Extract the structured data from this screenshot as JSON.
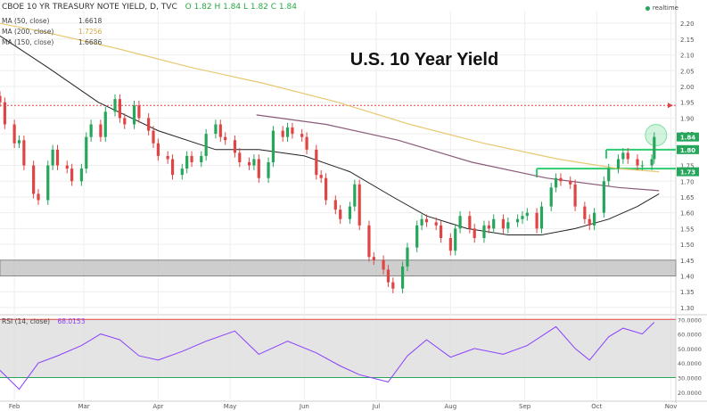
{
  "header": {
    "symbol_title": "CBOE 10 YR TREASURY NOTE YIELD, D, TVC",
    "ohlc": "O 1.82  H 1.84  L 1.82  C 1.84",
    "realtime_label": "realtime"
  },
  "indicators": [
    {
      "label": "MA (50, close)",
      "value": "1.6618"
    },
    {
      "label": "MA (200, close)",
      "value": "1.7256"
    },
    {
      "label": "MA (150, close)",
      "value": "1.6686"
    }
  ],
  "rsi_label": {
    "label": "RSI (14, close)",
    "value": "68.0153"
  },
  "colors": {
    "up": "#26a65b",
    "down": "#e04545",
    "ma50": "#222222",
    "ma200": "#e8c870",
    "ma150": "#8a5a7a",
    "rsi": "#8a3ffc",
    "band": "#bdbdbd",
    "green_line": "#2ecc71",
    "red_dash": "#e04545",
    "grid": "#eeeeee"
  },
  "chart_data": {
    "type": "candlestick",
    "title": "U.S. 10 Year Yield",
    "x_ticks": [
      "Feb",
      "Mar",
      "Apr",
      "May",
      "Jun",
      "Jul",
      "Aug",
      "Sep",
      "Oct",
      "Nov"
    ],
    "y_ticks": [
      "1.30",
      "1.35",
      "1.40",
      "1.45",
      "1.50",
      "1.55",
      "1.60",
      "1.65",
      "1.70",
      "1.75",
      "1.80",
      "1.85",
      "1.90",
      "1.95",
      "2.00",
      "2.05",
      "2.10",
      "2.15",
      "2.20"
    ],
    "ylim": [
      1.28,
      2.24
    ],
    "price_badges": [
      {
        "value": 1.84,
        "label": "1.84",
        "color": "#26a65b"
      },
      {
        "value": 1.8,
        "label": "1.80",
        "color": "#26a65b"
      },
      {
        "value": 1.73,
        "label": "1.73",
        "color": "#26a65b"
      }
    ],
    "support_band": [
      1.4,
      1.45
    ],
    "resistance_dashed": 1.94,
    "green_levels": [
      {
        "value": 1.8,
        "from": "2016-10-05",
        "to": "2016-10-31"
      },
      {
        "value": 1.74,
        "from": "2016-09-06",
        "to": "2016-10-31"
      }
    ],
    "highlight_circle": {
      "date": "2016-10-25",
      "value": 1.84
    },
    "closes": [
      [
        "2016-01-26",
        1.95
      ],
      [
        "2016-01-28",
        1.88
      ],
      [
        "2016-02-01",
        1.82
      ],
      [
        "2016-02-03",
        1.83
      ],
      [
        "2016-02-05",
        1.75
      ],
      [
        "2016-02-09",
        1.66
      ],
      [
        "2016-02-11",
        1.64
      ],
      [
        "2016-02-15",
        1.75
      ],
      [
        "2016-02-17",
        1.8
      ],
      [
        "2016-02-19",
        1.75
      ],
      [
        "2016-02-23",
        1.74
      ],
      [
        "2016-02-25",
        1.7
      ],
      [
        "2016-02-29",
        1.74
      ],
      [
        "2016-03-02",
        1.84
      ],
      [
        "2016-03-04",
        1.88
      ],
      [
        "2016-03-08",
        1.84
      ],
      [
        "2016-03-10",
        1.92
      ],
      [
        "2016-03-14",
        1.96
      ],
      [
        "2016-03-16",
        1.9
      ],
      [
        "2016-03-18",
        1.88
      ],
      [
        "2016-03-22",
        1.94
      ],
      [
        "2016-03-24",
        1.9
      ],
      [
        "2016-03-28",
        1.86
      ],
      [
        "2016-03-30",
        1.82
      ],
      [
        "2016-04-01",
        1.78
      ],
      [
        "2016-04-05",
        1.77
      ],
      [
        "2016-04-07",
        1.72
      ],
      [
        "2016-04-11",
        1.74
      ],
      [
        "2016-04-13",
        1.78
      ],
      [
        "2016-04-15",
        1.76
      ],
      [
        "2016-04-19",
        1.78
      ],
      [
        "2016-04-21",
        1.85
      ],
      [
        "2016-04-25",
        1.88
      ],
      [
        "2016-04-27",
        1.84
      ],
      [
        "2016-04-29",
        1.83
      ],
      [
        "2016-05-03",
        1.79
      ],
      [
        "2016-05-05",
        1.76
      ],
      [
        "2016-05-09",
        1.75
      ],
      [
        "2016-05-11",
        1.77
      ],
      [
        "2016-05-13",
        1.71
      ],
      [
        "2016-05-17",
        1.76
      ],
      [
        "2016-05-19",
        1.86
      ],
      [
        "2016-05-23",
        1.84
      ],
      [
        "2016-05-25",
        1.87
      ],
      [
        "2016-05-27",
        1.85
      ],
      [
        "2016-05-31",
        1.84
      ],
      [
        "2016-06-02",
        1.8
      ],
      [
        "2016-06-06",
        1.72
      ],
      [
        "2016-06-08",
        1.71
      ],
      [
        "2016-06-10",
        1.64
      ],
      [
        "2016-06-14",
        1.61
      ],
      [
        "2016-06-16",
        1.58
      ],
      [
        "2016-06-20",
        1.62
      ],
      [
        "2016-06-22",
        1.69
      ],
      [
        "2016-06-24",
        1.56
      ],
      [
        "2016-06-28",
        1.46
      ],
      [
        "2016-06-30",
        1.45
      ],
      [
        "2016-07-04",
        1.42
      ],
      [
        "2016-07-06",
        1.38
      ],
      [
        "2016-07-08",
        1.36
      ],
      [
        "2016-07-12",
        1.43
      ],
      [
        "2016-07-14",
        1.49
      ],
      [
        "2016-07-18",
        1.56
      ],
      [
        "2016-07-20",
        1.58
      ],
      [
        "2016-07-22",
        1.57
      ],
      [
        "2016-07-26",
        1.56
      ],
      [
        "2016-07-28",
        1.52
      ],
      [
        "2016-08-01",
        1.48
      ],
      [
        "2016-08-03",
        1.55
      ],
      [
        "2016-08-05",
        1.59
      ],
      [
        "2016-08-09",
        1.55
      ],
      [
        "2016-08-11",
        1.52
      ],
      [
        "2016-08-15",
        1.56
      ],
      [
        "2016-08-17",
        1.55
      ],
      [
        "2016-08-19",
        1.58
      ],
      [
        "2016-08-23",
        1.55
      ],
      [
        "2016-08-25",
        1.57
      ],
      [
        "2016-08-29",
        1.58
      ],
      [
        "2016-08-31",
        1.59
      ],
      [
        "2016-09-02",
        1.6
      ],
      [
        "2016-09-06",
        1.55
      ],
      [
        "2016-09-08",
        1.62
      ],
      [
        "2016-09-12",
        1.68
      ],
      [
        "2016-09-14",
        1.71
      ],
      [
        "2016-09-16",
        1.7
      ],
      [
        "2016-09-20",
        1.69
      ],
      [
        "2016-09-22",
        1.62
      ],
      [
        "2016-09-26",
        1.58
      ],
      [
        "2016-09-28",
        1.56
      ],
      [
        "2016-09-30",
        1.6
      ],
      [
        "2016-10-04",
        1.7
      ],
      [
        "2016-10-06",
        1.74
      ],
      [
        "2016-10-10",
        1.77
      ],
      [
        "2016-10-12",
        1.79
      ],
      [
        "2016-10-14",
        1.77
      ],
      [
        "2016-10-18",
        1.75
      ],
      [
        "2016-10-20",
        1.75
      ],
      [
        "2016-10-24",
        1.77
      ],
      [
        "2016-10-25",
        1.84
      ]
    ],
    "ma50": [
      [
        "2016-01-26",
        2.16
      ],
      [
        "2016-02-15",
        2.06
      ],
      [
        "2016-03-07",
        1.95
      ],
      [
        "2016-04-01",
        1.86
      ],
      [
        "2016-04-25",
        1.8
      ],
      [
        "2016-05-13",
        1.8
      ],
      [
        "2016-06-01",
        1.78
      ],
      [
        "2016-06-20",
        1.73
      ],
      [
        "2016-07-08",
        1.65
      ],
      [
        "2016-07-22",
        1.59
      ],
      [
        "2016-08-08",
        1.55
      ],
      [
        "2016-08-25",
        1.53
      ],
      [
        "2016-09-08",
        1.53
      ],
      [
        "2016-09-22",
        1.55
      ],
      [
        "2016-10-06",
        1.58
      ],
      [
        "2016-10-18",
        1.62
      ],
      [
        "2016-10-27",
        1.66
      ]
    ],
    "ma200": [
      [
        "2016-01-26",
        2.2
      ],
      [
        "2016-02-15",
        2.17
      ],
      [
        "2016-03-15",
        2.12
      ],
      [
        "2016-04-15",
        2.06
      ],
      [
        "2016-05-15",
        2.01
      ],
      [
        "2016-06-15",
        1.95
      ],
      [
        "2016-07-15",
        1.88
      ],
      [
        "2016-08-15",
        1.82
      ],
      [
        "2016-09-15",
        1.77
      ],
      [
        "2016-10-10",
        1.74
      ],
      [
        "2016-10-27",
        1.73
      ]
    ],
    "ma150": [
      [
        "2016-05-12",
        1.91
      ],
      [
        "2016-06-10",
        1.88
      ],
      [
        "2016-07-10",
        1.83
      ],
      [
        "2016-08-10",
        1.76
      ],
      [
        "2016-09-10",
        1.71
      ],
      [
        "2016-10-10",
        1.68
      ],
      [
        "2016-10-27",
        1.67
      ]
    ],
    "rsi": {
      "y_ticks": [
        "20.0000",
        "30.0000",
        "40.0000",
        "50.0000",
        "60.0000",
        "70.0000"
      ],
      "ylim": [
        15,
        72
      ],
      "overbought": 70,
      "oversold": 30,
      "current": 68.0153,
      "values": [
        [
          "2016-01-26",
          35
        ],
        [
          "2016-02-03",
          22
        ],
        [
          "2016-02-11",
          40
        ],
        [
          "2016-02-19",
          45
        ],
        [
          "2016-02-29",
          52
        ],
        [
          "2016-03-08",
          60
        ],
        [
          "2016-03-16",
          56
        ],
        [
          "2016-03-24",
          45
        ],
        [
          "2016-04-01",
          42
        ],
        [
          "2016-04-11",
          48
        ],
        [
          "2016-04-21",
          55
        ],
        [
          "2016-05-03",
          62
        ],
        [
          "2016-05-13",
          46
        ],
        [
          "2016-05-25",
          55
        ],
        [
          "2016-06-06",
          47
        ],
        [
          "2016-06-16",
          38
        ],
        [
          "2016-06-24",
          32
        ],
        [
          "2016-07-06",
          27
        ],
        [
          "2016-07-14",
          45
        ],
        [
          "2016-07-22",
          56
        ],
        [
          "2016-08-01",
          44
        ],
        [
          "2016-08-11",
          50
        ],
        [
          "2016-08-23",
          46
        ],
        [
          "2016-09-02",
          52
        ],
        [
          "2016-09-14",
          65
        ],
        [
          "2016-09-22",
          50
        ],
        [
          "2016-09-28",
          42
        ],
        [
          "2016-10-06",
          58
        ],
        [
          "2016-10-12",
          64
        ],
        [
          "2016-10-20",
          60
        ],
        [
          "2016-10-25",
          68
        ]
      ]
    }
  }
}
